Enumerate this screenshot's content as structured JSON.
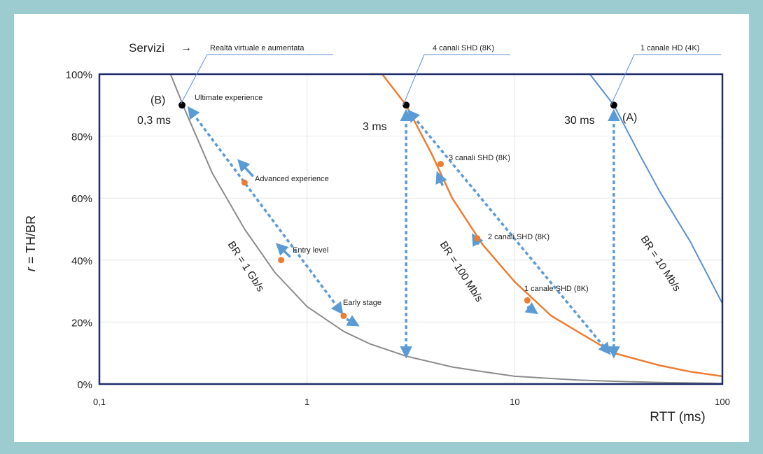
{
  "chart_data": {
    "type": "line",
    "x_scale": "log",
    "xlim": [
      0.1,
      100
    ],
    "ylim": [
      0,
      100
    ],
    "xlabel": "RTT (ms)",
    "ylabel": "r = TH/BR",
    "x_ticks": [
      "0,1",
      "1",
      "10",
      "100"
    ],
    "y_ticks": [
      "0%",
      "20%",
      "40%",
      "60%",
      "80%",
      "100%"
    ],
    "grid": true,
    "series": [
      {
        "name": "BR = 1 Gb/s",
        "color": "#8c8c8c",
        "points": [
          [
            0.1,
            100
          ],
          [
            0.22,
            100
          ],
          [
            0.26,
            88
          ],
          [
            0.35,
            68
          ],
          [
            0.5,
            50
          ],
          [
            0.7,
            36
          ],
          [
            1,
            25
          ],
          [
            1.5,
            17
          ],
          [
            2,
            13
          ],
          [
            3,
            9
          ],
          [
            5,
            5.5
          ],
          [
            7,
            4
          ],
          [
            10,
            2.5
          ],
          [
            20,
            1.3
          ],
          [
            30,
            0.9
          ],
          [
            50,
            0.5
          ],
          [
            100,
            0.2
          ]
        ]
      },
      {
        "name": "BR = 100 Mb/s",
        "color": "#ed7d31",
        "points": [
          [
            2,
            100
          ],
          [
            2.3,
            100
          ],
          [
            3,
            90
          ],
          [
            4,
            74
          ],
          [
            5,
            60
          ],
          [
            7,
            45
          ],
          [
            10,
            33
          ],
          [
            15,
            22
          ],
          [
            20,
            17
          ],
          [
            30,
            10
          ],
          [
            50,
            6
          ],
          [
            70,
            4
          ],
          [
            100,
            2.5
          ]
        ]
      },
      {
        "name": "BR = 10 Mb/s",
        "color": "#5b8fd6",
        "points": [
          [
            20,
            100
          ],
          [
            23,
            100
          ],
          [
            30,
            90
          ],
          [
            40,
            74
          ],
          [
            50,
            62
          ],
          [
            70,
            46
          ],
          [
            100,
            26
          ]
        ]
      }
    ],
    "points": [
      {
        "label": "Ultimate experience",
        "x": 0.25,
        "y": 90,
        "color": "#000000"
      },
      {
        "label": "Advanced experience",
        "x": 0.5,
        "y": 65,
        "color": "#ed7d31"
      },
      {
        "label": "Entry level",
        "x": 0.75,
        "y": 40,
        "color": "#ed7d31"
      },
      {
        "label": "Early stage",
        "x": 1.5,
        "y": 22,
        "color": "#ed7d31"
      },
      {
        "label": "4 canali SHD (8K)",
        "x": 3,
        "y": 90,
        "color": "#000000"
      },
      {
        "label": "3 canali SHD (8K)",
        "x": 4.4,
        "y": 71,
        "color": "#ed7d31"
      },
      {
        "label": "2 canali SHD (8K)",
        "x": 6.6,
        "y": 47,
        "color": "#ed7d31"
      },
      {
        "label": "1 canale SHD (8K)",
        "x": 11.5,
        "y": 27,
        "color": "#ed7d31"
      },
      {
        "label": "1 canale HD (4K)",
        "x": 30,
        "y": 90,
        "color": "#000000"
      }
    ],
    "annotations": {
      "services_label": "Servizi",
      "services_arrow": "→",
      "services_vr": "Realtà virtuale e aumentata",
      "ch4": "4 canali SHD (8K)",
      "hd1": "1 canale HD (4K)",
      "ultimate": "Ultimate experience",
      "advanced": "Advanced experience",
      "entry": "Entry level",
      "early": "Early stage",
      "ch3": "3 canali SHD (8K)",
      "ch2": "2 canali SHD (8K)",
      "ch1": "1 canale SHD (8K)",
      "label_b": "(B)",
      "label_a": "(A)",
      "rtt_03": "0,3 ms",
      "rtt_3": "3 ms",
      "rtt_30": "30 ms",
      "br_1g": "BR = 1 Gb/s",
      "br_100m": "BR = 100 Mb/s",
      "br_10m": "BR = 10 Mb/s"
    },
    "arrow_color": "#5b9bd5",
    "axis_color": "#1f2d6b"
  }
}
